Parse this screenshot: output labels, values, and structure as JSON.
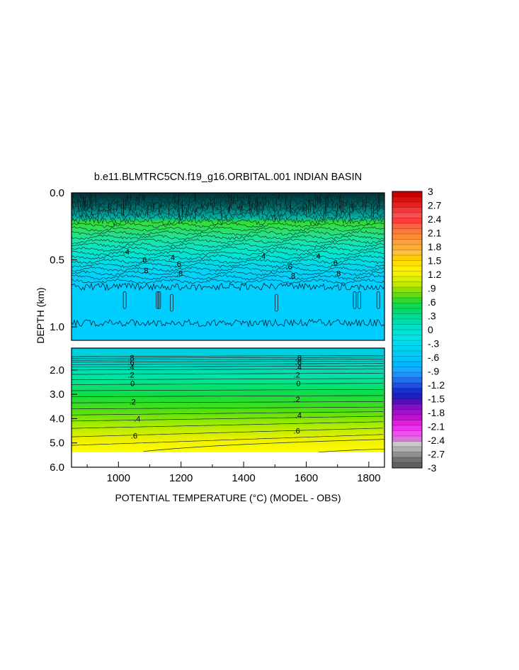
{
  "chart_data": {
    "type": "heatmap",
    "title": "b.e11.BLMTRC5CN.f19_g16.ORBITAL.001 INDIAN BASIN",
    "xlabel": "POTENTIAL TEMPERATURE (°C) (MODEL - OBS)",
    "ylabel": "DEPTH (km)",
    "x_range": [
      850,
      1850
    ],
    "x_ticks": [
      "1000",
      "1200",
      "1400",
      "1600",
      "1800"
    ],
    "x_tick_values": [
      1000,
      1200,
      1400,
      1600,
      1800
    ],
    "upper_panel": {
      "y_range": [
        0.0,
        1.1
      ],
      "y_ticks": [
        "0.0",
        "0.5",
        "1.0"
      ],
      "y_tick_values": [
        0.0,
        0.5,
        1.0
      ]
    },
    "lower_panel": {
      "y_range": [
        1.1,
        6.0
      ],
      "y_ticks": [
        "2.0",
        "3.0",
        "4.0",
        "5.0",
        "6.0"
      ],
      "y_tick_values": [
        2.0,
        3.0,
        4.0,
        5.0,
        6.0
      ]
    },
    "colorbar": {
      "levels": [
        "3",
        "2.7",
        "2.4",
        "2.1",
        "1.8",
        "1.5",
        "1.2",
        ".9",
        ".6",
        ".3",
        "0",
        "-.3",
        "-.6",
        "-.9",
        "-1.2",
        "-1.5",
        "-1.8",
        "-2.1",
        "-2.4",
        "-2.7",
        "-3"
      ],
      "level_values": [
        3,
        2.7,
        2.4,
        2.1,
        1.8,
        1.5,
        1.2,
        0.9,
        0.6,
        0.3,
        0,
        -0.3,
        -0.6,
        -0.9,
        -1.2,
        -1.5,
        -1.8,
        -2.1,
        -2.4,
        -2.7,
        -3
      ]
    },
    "upper_contour_labels": [
      {
        "text": ".6",
        "x": 1080,
        "depth": 0.5
      },
      {
        "text": ".8",
        "x": 1085,
        "depth": 0.58
      },
      {
        "text": ".4",
        "x": 1025,
        "depth": 0.44
      },
      {
        "text": ".4",
        "x": 1170,
        "depth": 0.48
      },
      {
        "text": ".6",
        "x": 1190,
        "depth": 0.53
      },
      {
        "text": ".8",
        "x": 1195,
        "depth": 0.6
      },
      {
        "text": ".4",
        "x": 1460,
        "depth": 0.47
      },
      {
        "text": ".6",
        "x": 1545,
        "depth": 0.55
      },
      {
        "text": ".8",
        "x": 1555,
        "depth": 0.62
      },
      {
        "text": ".4",
        "x": 1635,
        "depth": 0.47
      },
      {
        "text": ".6",
        "x": 1690,
        "depth": 0.52
      },
      {
        "text": ".8",
        "x": 1700,
        "depth": 0.6
      }
    ],
    "lower_contour_labels": [
      {
        "text": ".8",
        "x": 1040,
        "depth": 1.5
      },
      {
        "text": ".6",
        "x": 1040,
        "depth": 1.68
      },
      {
        "text": ".4",
        "x": 1040,
        "depth": 1.87
      },
      {
        "text": ".2",
        "x": 1040,
        "depth": 2.2
      },
      {
        "text": "0",
        "x": 1045,
        "depth": 2.55
      },
      {
        "text": ".2",
        "x": 1045,
        "depth": 3.3
      },
      {
        "text": ".4",
        "x": 1060,
        "depth": 4.0
      },
      {
        "text": ".6",
        "x": 1050,
        "depth": 4.7
      },
      {
        "text": ".8",
        "x": 1575,
        "depth": 1.5
      },
      {
        "text": ".6",
        "x": 1575,
        "depth": 1.68
      },
      {
        "text": ".4",
        "x": 1575,
        "depth": 1.87
      },
      {
        "text": ".2",
        "x": 1570,
        "depth": 2.2
      },
      {
        "text": "0",
        "x": 1575,
        "depth": 2.55
      },
      {
        "text": ".2",
        "x": 1570,
        "depth": 3.2
      },
      {
        "text": ".4",
        "x": 1575,
        "depth": 3.85
      },
      {
        "text": ".6",
        "x": 1570,
        "depth": 4.5
      }
    ]
  }
}
